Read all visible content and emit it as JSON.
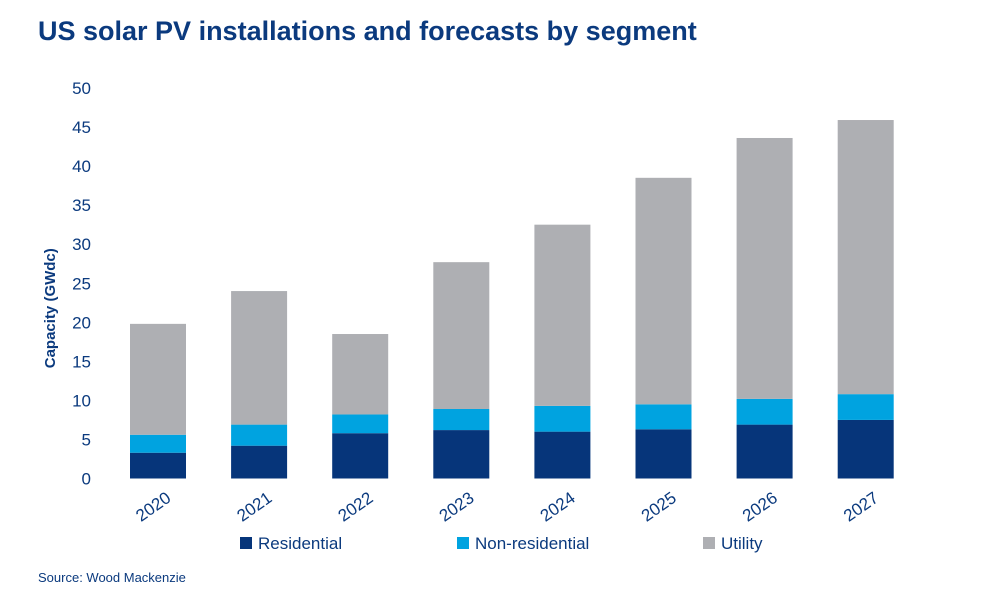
{
  "chart_data": {
    "type": "bar",
    "stacked": true,
    "title": "US solar PV installations and forecasts by segment",
    "ylabel": "Capacity (GWdc)",
    "xlabel": "",
    "ylim": [
      0,
      50
    ],
    "yticks": [
      0,
      5,
      10,
      15,
      20,
      25,
      30,
      35,
      40,
      45,
      50
    ],
    "grid": false,
    "legend_position": "bottom",
    "categories": [
      "2020",
      "2021",
      "2022",
      "2023",
      "2024",
      "2025",
      "2026",
      "2027"
    ],
    "series": [
      {
        "name": "Residential",
        "color": "#06357a",
        "values": [
          3.3,
          4.2,
          5.8,
          6.2,
          6.0,
          6.3,
          6.9,
          7.5
        ]
      },
      {
        "name": "Non-residential",
        "color": "#00a3e0",
        "values": [
          2.3,
          2.7,
          2.4,
          2.7,
          3.3,
          3.2,
          3.3,
          3.3
        ]
      },
      {
        "name": "Utility",
        "color": "#aeafb3",
        "values": [
          14.2,
          17.1,
          10.3,
          18.8,
          23.2,
          29.0,
          33.4,
          35.1
        ]
      }
    ],
    "source": "Source: Wood Mackenzie"
  }
}
